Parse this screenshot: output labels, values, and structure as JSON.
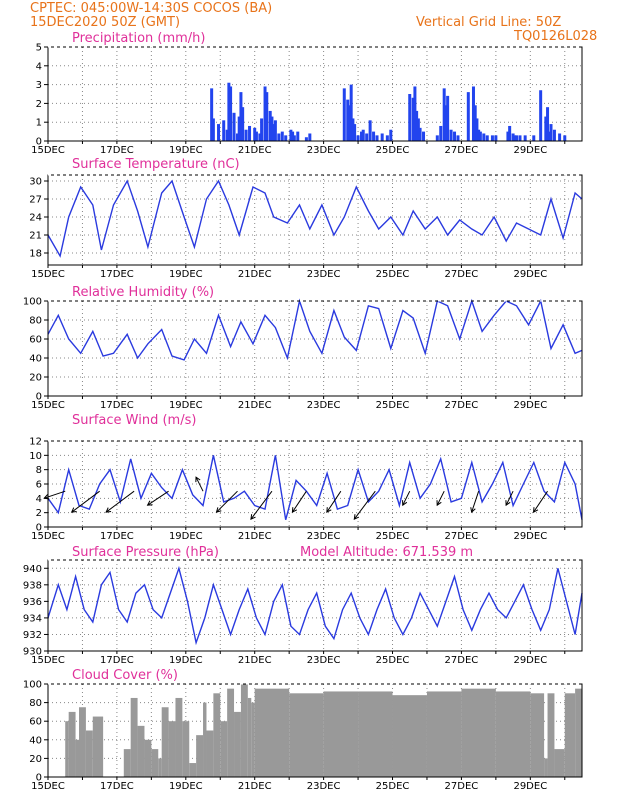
{
  "header": {
    "line1": "CPTEC:   045:00W-14:30S   COCOS (BA)",
    "line2": "15DEC2020 50Z (GMT)",
    "grid_note": "Vertical Grid Line: 50Z",
    "code": "TQ0126L028"
  },
  "colors": {
    "header": "#e8731a",
    "title": "#e0309a",
    "line": "#2a3adf",
    "bar": "#2244ee",
    "cloud": "#999999"
  },
  "x_axis": {
    "labels": [
      "15DEC",
      "17DEC",
      "19DEC",
      "21DEC",
      "23DEC",
      "25DEC",
      "27DEC",
      "29DEC"
    ],
    "label_days": [
      0,
      2,
      4,
      6,
      8,
      10,
      12,
      14
    ],
    "start_day": 0,
    "end_day": 15.5
  },
  "chart_data": [
    {
      "type": "bar",
      "title": "Precipitation (mm/h)",
      "ylim": [
        0,
        5
      ],
      "yticks": [
        0,
        1,
        2,
        3,
        4,
        5
      ],
      "x": [
        4.75,
        4.8,
        4.95,
        5.1,
        5.2,
        5.25,
        5.3,
        5.4,
        5.5,
        5.55,
        5.6,
        5.65,
        5.75,
        5.85,
        6.0,
        6.05,
        6.15,
        6.2,
        6.3,
        6.35,
        6.45,
        6.5,
        6.55,
        6.6,
        6.7,
        6.8,
        6.9,
        7.05,
        7.1,
        7.15,
        7.25,
        7.5,
        7.6,
        8.6,
        8.7,
        8.75,
        8.8,
        8.85,
        8.9,
        9.0,
        9.1,
        9.15,
        9.25,
        9.35,
        9.45,
        9.55,
        9.7,
        9.85,
        9.95,
        10.5,
        10.6,
        10.65,
        10.7,
        10.75,
        10.8,
        10.9,
        11.3,
        11.4,
        11.5,
        11.55,
        11.6,
        11.7,
        11.8,
        11.9,
        12.2,
        12.35,
        12.4,
        12.45,
        12.5,
        12.55,
        12.65,
        12.75,
        12.9,
        13.0,
        13.35,
        13.4,
        13.5,
        13.55,
        13.6,
        13.7,
        13.85,
        14.1,
        14.3,
        14.45,
        14.5,
        14.55,
        14.6,
        14.7,
        14.85,
        15.0
      ],
      "values": [
        2.8,
        1.2,
        0.9,
        1.1,
        0.6,
        3.1,
        2.9,
        1.5,
        0.4,
        1.3,
        2.6,
        1.8,
        0.6,
        0.8,
        0.7,
        0.5,
        0.4,
        1.2,
        2.9,
        2.6,
        1.6,
        1.3,
        0.9,
        1.1,
        0.4,
        0.5,
        0.3,
        0.6,
        0.5,
        0.3,
        0.5,
        0.2,
        0.4,
        2.8,
        2.2,
        1.9,
        3.0,
        1.2,
        0.9,
        0.3,
        0.5,
        0.6,
        0.4,
        1.1,
        0.5,
        0.3,
        0.4,
        0.3,
        0.6,
        2.5,
        2.3,
        2.9,
        1.6,
        1.2,
        0.7,
        0.5,
        0.3,
        0.8,
        2.8,
        1.9,
        2.4,
        0.6,
        0.5,
        0.3,
        2.6,
        2.9,
        1.9,
        1.2,
        0.6,
        0.5,
        0.4,
        0.3,
        0.3,
        0.3,
        0.5,
        0.8,
        0.4,
        0.3,
        0.3,
        0.3,
        0.3,
        0.3,
        2.7,
        1.3,
        1.8,
        0.5,
        0.9,
        0.6,
        0.4,
        0.3
      ]
    },
    {
      "type": "line",
      "title": "Surface Temperature (nC)",
      "ylim": [
        16,
        31
      ],
      "yticks": [
        18,
        21,
        24,
        27,
        30
      ],
      "x": [
        0,
        0.35,
        0.6,
        0.95,
        1.3,
        1.55,
        1.9,
        2.3,
        2.6,
        2.9,
        3.3,
        3.6,
        3.95,
        4.25,
        4.6,
        4.95,
        5.25,
        5.55,
        5.95,
        6.3,
        6.55,
        6.95,
        7.3,
        7.6,
        7.95,
        8.3,
        8.6,
        8.95,
        9.3,
        9.6,
        9.95,
        10.3,
        10.6,
        10.95,
        11.3,
        11.6,
        11.95,
        12.3,
        12.6,
        12.95,
        13.3,
        13.6,
        13.95,
        14.3,
        14.6,
        14.95,
        15.3,
        15.5
      ],
      "values": [
        21,
        17.5,
        24,
        29,
        26,
        18.5,
        26,
        30,
        25,
        19,
        28,
        30,
        24,
        19,
        27,
        30,
        26,
        21,
        29,
        28,
        24,
        23,
        26,
        22,
        26,
        21,
        24,
        29,
        25,
        22,
        24,
        21,
        25,
        22,
        24,
        21,
        23.5,
        22,
        21,
        24,
        20,
        23,
        22,
        21,
        27,
        20.5,
        28,
        27
      ]
    },
    {
      "type": "line",
      "title": "Relative Humidity (%)",
      "ylim": [
        0,
        100
      ],
      "yticks": [
        0,
        20,
        40,
        60,
        80,
        100
      ],
      "x": [
        0,
        0.3,
        0.6,
        0.95,
        1.3,
        1.6,
        1.9,
        2.3,
        2.6,
        2.9,
        3.3,
        3.6,
        3.95,
        4.25,
        4.6,
        4.95,
        5.3,
        5.6,
        5.95,
        6.3,
        6.6,
        6.95,
        7.3,
        7.6,
        7.95,
        8.3,
        8.6,
        8.95,
        9.3,
        9.6,
        9.95,
        10.3,
        10.6,
        10.95,
        11.3,
        11.6,
        11.95,
        12.3,
        12.6,
        12.95,
        13.3,
        13.6,
        13.95,
        14.3,
        14.6,
        14.95,
        15.3,
        15.5
      ],
      "values": [
        65,
        85,
        60,
        45,
        68,
        42,
        45,
        65,
        40,
        55,
        70,
        42,
        38,
        60,
        45,
        85,
        52,
        78,
        55,
        85,
        72,
        40,
        100,
        68,
        45,
        90,
        62,
        48,
        95,
        92,
        50,
        90,
        82,
        45,
        100,
        95,
        60,
        100,
        68,
        85,
        100,
        95,
        75,
        100,
        50,
        75,
        45,
        48
      ]
    },
    {
      "type": "line",
      "title": "Surface Wind (m/s)",
      "ylim": [
        0,
        12
      ],
      "yticks": [
        0,
        2,
        4,
        6,
        8,
        10,
        12
      ],
      "x": [
        0,
        0.3,
        0.6,
        0.9,
        1.2,
        1.5,
        1.8,
        2.1,
        2.4,
        2.7,
        3.0,
        3.3,
        3.6,
        3.9,
        4.2,
        4.5,
        4.8,
        5.1,
        5.4,
        5.7,
        6.0,
        6.3,
        6.6,
        6.9,
        7.2,
        7.5,
        7.8,
        8.1,
        8.4,
        8.7,
        9.0,
        9.3,
        9.6,
        9.9,
        10.2,
        10.5,
        10.8,
        11.1,
        11.4,
        11.7,
        12.0,
        12.3,
        12.6,
        12.9,
        13.2,
        13.5,
        13.8,
        14.1,
        14.4,
        14.7,
        15.0,
        15.3,
        15.5
      ],
      "values": [
        4,
        2,
        8,
        3,
        2.5,
        6,
        8,
        3.5,
        9.5,
        4,
        7.5,
        5.5,
        4,
        8,
        4.5,
        3,
        10,
        3.5,
        4,
        5,
        3,
        2.5,
        10,
        1,
        6.5,
        5,
        3,
        7.5,
        2.5,
        3,
        8,
        3.5,
        5,
        8,
        3,
        9,
        4,
        6,
        9.5,
        3.5,
        4,
        9,
        3.5,
        6,
        9,
        3,
        6,
        9,
        5,
        3.5,
        9,
        6,
        1
      ],
      "arrow_times": [
        0.5,
        1.5,
        2.5,
        3.5,
        4.5,
        5.5,
        6.5,
        7.5,
        8.5,
        9.5,
        10.5,
        11.5,
        12.5,
        13.5,
        14.5
      ],
      "arrow_u": [
        -3,
        -4,
        -4,
        -3,
        -1,
        -3,
        -3,
        -2,
        -2,
        -3,
        -1,
        -1,
        -1,
        -1,
        -2
      ],
      "arrow_v": [
        -1,
        -3,
        -3,
        -2,
        2,
        -3,
        -4,
        -3,
        -3,
        -4,
        -2,
        -2,
        -3,
        -2,
        -3
      ]
    },
    {
      "type": "line",
      "title": "Surface Pressure (hPa)",
      "annotation": "Model Altitude: 671.539  m",
      "ylim": [
        930,
        941
      ],
      "yticks": [
        930,
        932,
        934,
        936,
        938,
        940
      ],
      "x": [
        0,
        0.3,
        0.55,
        0.8,
        1.05,
        1.3,
        1.55,
        1.8,
        2.05,
        2.3,
        2.55,
        2.8,
        3.05,
        3.3,
        3.55,
        3.8,
        4.05,
        4.3,
        4.55,
        4.8,
        5.05,
        5.3,
        5.55,
        5.8,
        6.05,
        6.3,
        6.55,
        6.8,
        7.05,
        7.3,
        7.55,
        7.8,
        8.05,
        8.3,
        8.55,
        8.8,
        9.05,
        9.3,
        9.55,
        9.8,
        10.05,
        10.3,
        10.55,
        10.8,
        11.05,
        11.3,
        11.55,
        11.8,
        12.05,
        12.3,
        12.55,
        12.8,
        13.05,
        13.3,
        13.55,
        13.8,
        14.05,
        14.3,
        14.55,
        14.8,
        15.05,
        15.3,
        15.5
      ],
      "values": [
        934,
        938,
        935,
        939,
        935,
        933.5,
        938,
        939.5,
        935,
        933.5,
        937,
        938,
        935,
        934,
        937,
        940,
        936,
        931,
        934,
        938,
        935,
        932,
        935,
        937.5,
        934,
        932,
        936,
        938,
        933,
        932,
        935,
        937,
        933,
        931.5,
        935,
        937,
        934,
        932,
        935,
        937.5,
        934,
        932,
        934,
        937,
        935,
        933,
        936,
        939,
        935,
        932.5,
        935,
        937,
        935,
        934,
        936,
        938,
        935,
        932.5,
        935,
        940,
        936,
        932,
        937
      ]
    },
    {
      "type": "area",
      "title": "Cloud Cover (%)",
      "ylim": [
        0,
        100
      ],
      "yticks": [
        0,
        20,
        40,
        60,
        80,
        100
      ],
      "x": [
        0,
        0.3,
        0.5,
        0.6,
        0.8,
        0.9,
        1.1,
        1.3,
        1.6,
        2.0,
        2.2,
        2.4,
        2.6,
        2.8,
        3.0,
        3.2,
        3.3,
        3.5,
        3.7,
        3.9,
        4.1,
        4.3,
        4.5,
        4.6,
        4.8,
        5.0,
        5.2,
        5.4,
        5.6,
        5.8,
        5.9,
        6.0,
        7.0,
        8.0,
        9.0,
        10.0,
        11.0,
        12.0,
        13.0,
        14.0,
        14.4,
        14.5,
        14.7,
        15.0,
        15.3,
        15.5
      ],
      "values": [
        0,
        0,
        60,
        70,
        40,
        75,
        50,
        65,
        0,
        0,
        30,
        85,
        55,
        40,
        30,
        20,
        75,
        60,
        85,
        60,
        15,
        45,
        80,
        50,
        90,
        60,
        95,
        70,
        100,
        85,
        80,
        95,
        90,
        92,
        92,
        88,
        92,
        95,
        92,
        90,
        20,
        90,
        30,
        90,
        95,
        92
      ]
    }
  ]
}
